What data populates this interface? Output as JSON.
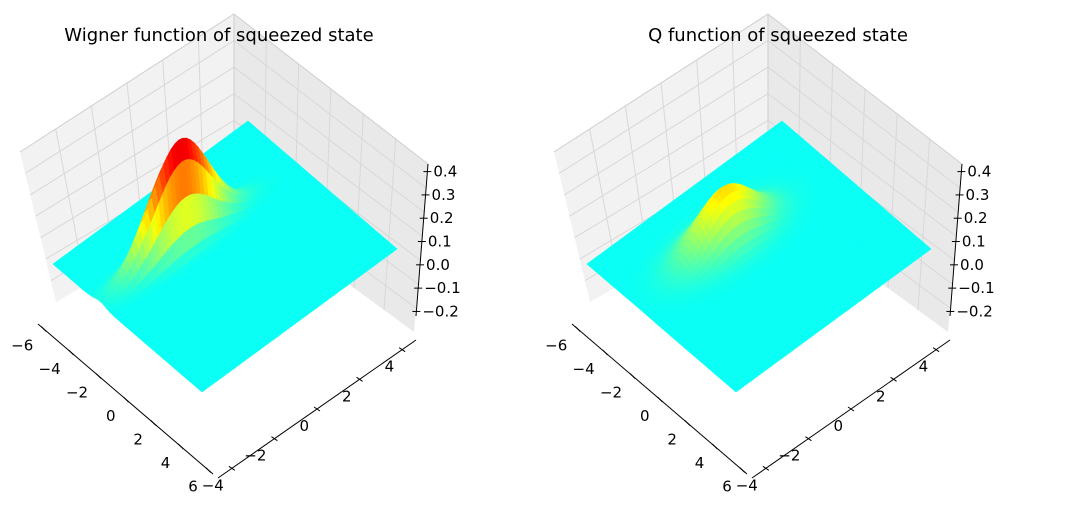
{
  "chart_data": [
    {
      "type": "surface3d",
      "title": "Wigner function of squeezed state",
      "xlabel": "",
      "ylabel": "",
      "zlabel": "",
      "xlim": [
        -6,
        6
      ],
      "ylim": [
        -5,
        5
      ],
      "zlim": [
        -0.25,
        0.4
      ],
      "x_ticks": [
        "−6",
        "−4",
        "−2",
        "0",
        "2",
        "4",
        "6"
      ],
      "y_ticks": [
        "−4",
        "−2",
        "0",
        "2",
        "4"
      ],
      "z_ticks": [
        "0.4",
        "0.3",
        "0.2",
        "0.1",
        "0.0",
        "−0.1",
        "−0.2"
      ],
      "colormap": "jet",
      "surface": {
        "peak_value": 0.36,
        "peak_x": -2.2,
        "peak_y": -1.0,
        "sigma_x": 0.45,
        "sigma_y": 1.5
      },
      "grid": true
    },
    {
      "type": "surface3d",
      "title": "Q function of squeezed state",
      "xlabel": "",
      "ylabel": "",
      "zlabel": "",
      "xlim": [
        -6,
        6
      ],
      "ylim": [
        -5,
        5
      ],
      "zlim": [
        -0.25,
        0.4
      ],
      "x_ticks": [
        "−6",
        "−4",
        "−2",
        "0",
        "2",
        "4",
        "6"
      ],
      "y_ticks": [
        "−4",
        "−2",
        "0",
        "2",
        "4"
      ],
      "z_ticks": [
        "0.4",
        "0.3",
        "0.2",
        "0.1",
        "0.0",
        "−0.1",
        "−0.2"
      ],
      "colormap": "jet",
      "surface": {
        "peak_value": 0.18,
        "peak_x": -2.0,
        "peak_y": -0.5,
        "sigma_x": 0.9,
        "sigma_y": 1.4
      },
      "grid": true
    }
  ]
}
